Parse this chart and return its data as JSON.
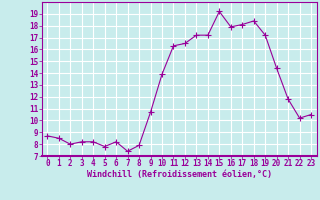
{
  "x": [
    0,
    1,
    2,
    3,
    4,
    5,
    6,
    7,
    8,
    9,
    10,
    11,
    12,
    13,
    14,
    15,
    16,
    17,
    18,
    19,
    20,
    21,
    22,
    23
  ],
  "y": [
    8.7,
    8.5,
    8.0,
    8.2,
    8.2,
    7.8,
    8.2,
    7.4,
    7.9,
    10.7,
    13.9,
    16.3,
    16.5,
    17.2,
    17.2,
    19.2,
    17.9,
    18.1,
    18.4,
    17.2,
    14.4,
    11.8,
    10.2,
    10.5
  ],
  "line_color": "#990099",
  "marker": "+",
  "marker_size": 4,
  "bg_color": "#c8ecec",
  "grid_color": "#ffffff",
  "xlabel": "Windchill (Refroidissement éolien,°C)",
  "xlabel_color": "#990099",
  "tick_color": "#990099",
  "label_fontsize": 5.5,
  "xlabel_fontsize": 6.0,
  "ylim": [
    7,
    20
  ],
  "xlim": [
    -0.5,
    23.5
  ],
  "yticks": [
    7,
    8,
    9,
    10,
    11,
    12,
    13,
    14,
    15,
    16,
    17,
    18,
    19
  ],
  "xticks": [
    0,
    1,
    2,
    3,
    4,
    5,
    6,
    7,
    8,
    9,
    10,
    11,
    12,
    13,
    14,
    15,
    16,
    17,
    18,
    19,
    20,
    21,
    22,
    23
  ]
}
